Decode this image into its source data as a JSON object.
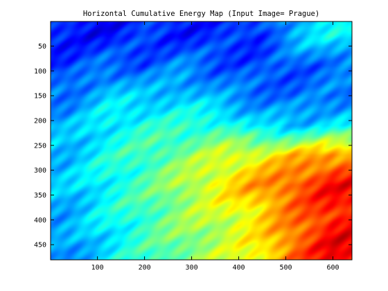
{
  "chart_data": {
    "type": "heatmap",
    "title": "Horizontal Cumulative Energy Map (Input Image= Prague)",
    "xlabel": "",
    "ylabel": "",
    "colormap": "jet",
    "xlim": [
      0.5,
      640.5
    ],
    "ylim": [
      0.5,
      480.5
    ],
    "y_direction": "reverse",
    "x_ticks": [
      100,
      200,
      300,
      400,
      500,
      600
    ],
    "y_ticks": [
      50,
      100,
      150,
      200,
      250,
      300,
      350,
      400,
      450
    ],
    "grid": false,
    "value_range": [
      0,
      1
    ],
    "approx_field": {
      "description": "approximate normalized energy sampled on a coarse grid (rows top to bottom, columns left to right)",
      "x_centers": [
        40,
        120,
        200,
        280,
        360,
        440,
        520,
        600
      ],
      "y_centers": [
        30,
        90,
        150,
        210,
        270,
        330,
        390,
        450
      ],
      "values": [
        [
          0.12,
          0.1,
          0.15,
          0.12,
          0.14,
          0.14,
          0.3,
          0.35
        ],
        [
          0.15,
          0.22,
          0.18,
          0.24,
          0.18,
          0.16,
          0.18,
          0.22
        ],
        [
          0.22,
          0.32,
          0.3,
          0.32,
          0.26,
          0.22,
          0.2,
          0.22
        ],
        [
          0.28,
          0.36,
          0.4,
          0.4,
          0.42,
          0.32,
          0.3,
          0.35
        ],
        [
          0.3,
          0.38,
          0.44,
          0.5,
          0.58,
          0.62,
          0.7,
          0.75
        ],
        [
          0.3,
          0.38,
          0.44,
          0.55,
          0.64,
          0.74,
          0.82,
          0.9
        ],
        [
          0.28,
          0.36,
          0.44,
          0.52,
          0.58,
          0.66,
          0.78,
          0.88
        ],
        [
          0.25,
          0.34,
          0.42,
          0.5,
          0.56,
          0.64,
          0.8,
          0.92
        ]
      ]
    }
  }
}
